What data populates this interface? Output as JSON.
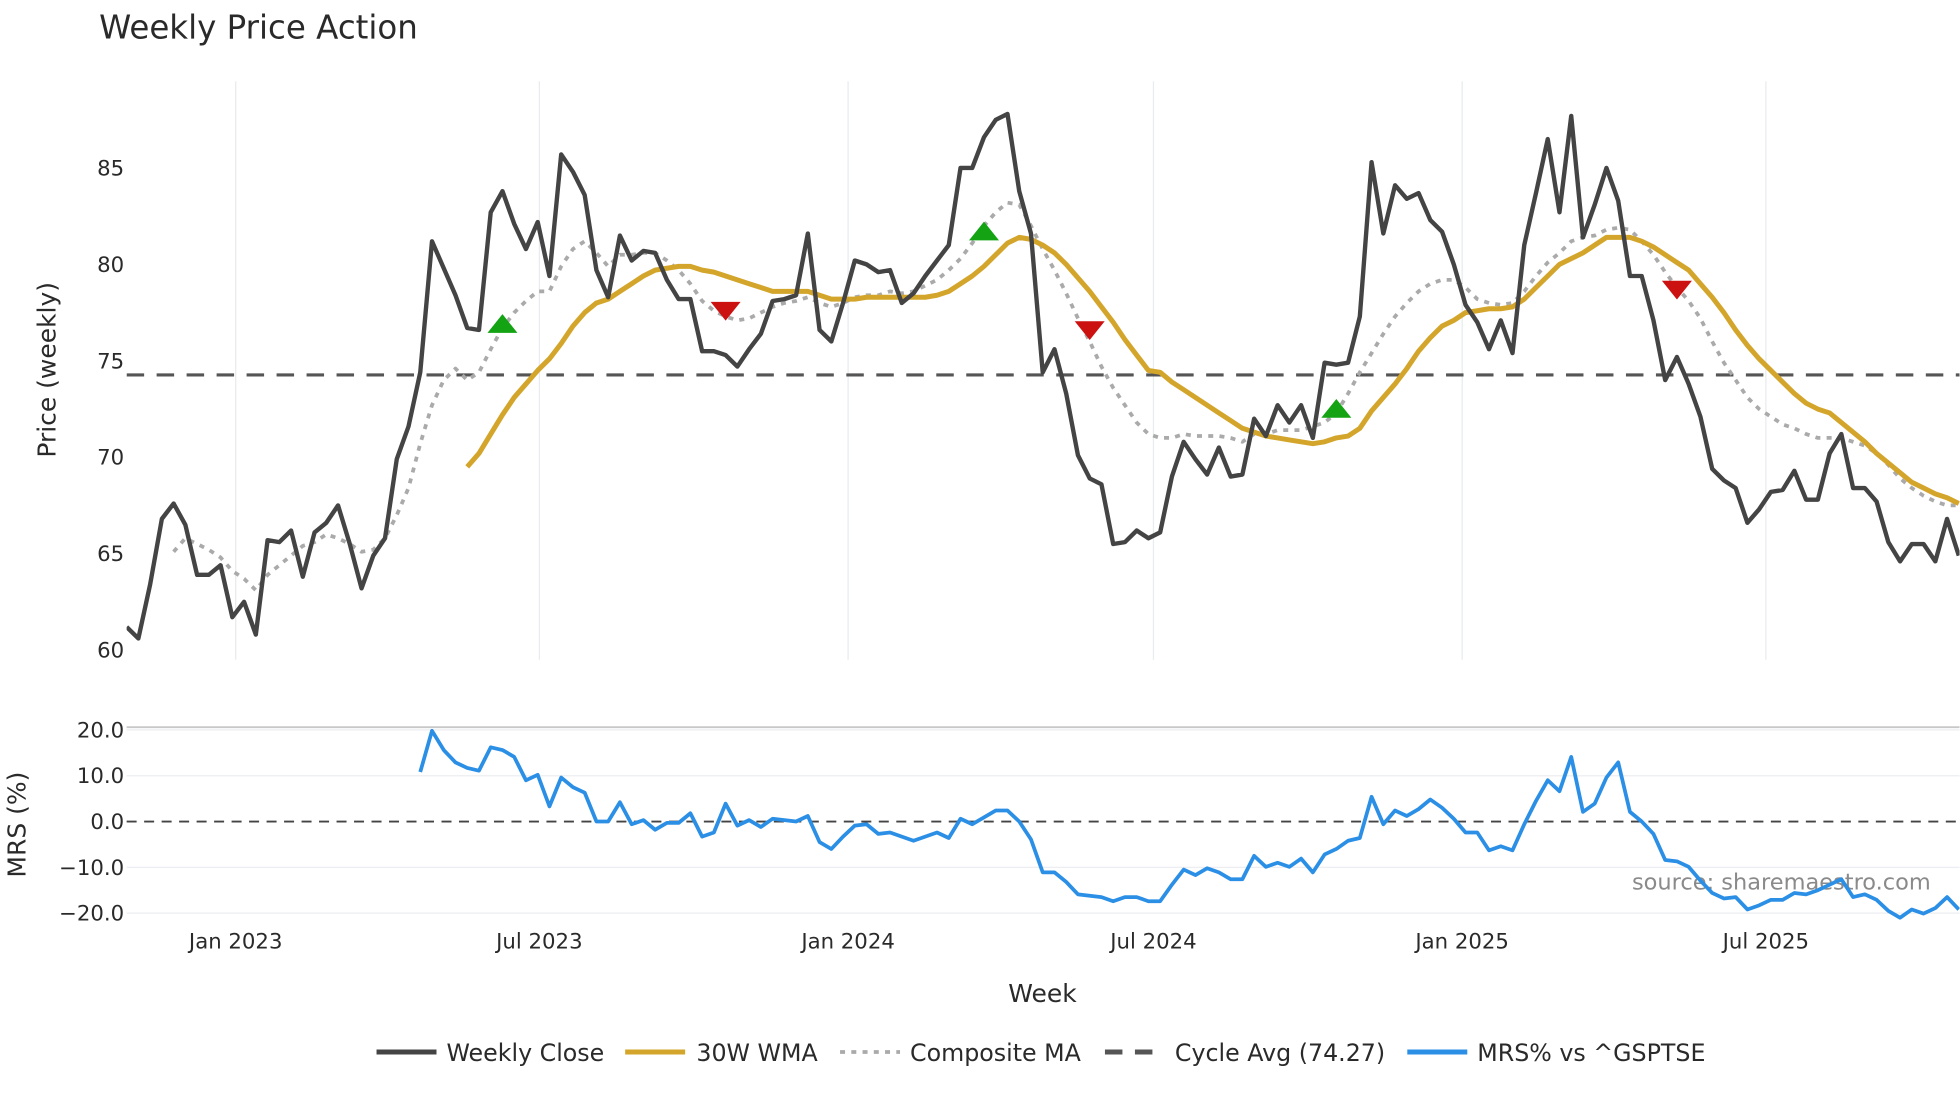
{
  "chart_data": {
    "type": "line",
    "title": "Weekly Price Action",
    "xlabel": "Week",
    "x_start": "2022-10-28",
    "x_step_days": 7,
    "x_ticks": [
      {
        "date": "2023-01-01",
        "label": "Jan 2023"
      },
      {
        "date": "2023-07-01",
        "label": "Jul 2023"
      },
      {
        "date": "2024-01-01",
        "label": "Jan 2024"
      },
      {
        "date": "2024-07-01",
        "label": "Jul 2024"
      },
      {
        "date": "2025-01-01",
        "label": "Jan 2025"
      },
      {
        "date": "2025-07-01",
        "label": "Jul 2025"
      }
    ],
    "price_panel": {
      "ylabel": "Price (weekly)",
      "ylim": [
        59.5,
        89.5
      ],
      "y_ticks": [
        60,
        65,
        70,
        75,
        80,
        85
      ],
      "cycle_avg": 74.27,
      "series": [
        {
          "name": "Weekly Close",
          "color": "#444444",
          "style": "solid",
          "values": [
            61.2,
            60.6,
            63.4,
            66.8,
            67.6,
            66.5,
            63.9,
            63.9,
            64.4,
            61.7,
            62.5,
            60.8,
            65.7,
            65.6,
            66.2,
            63.8,
            66.1,
            66.6,
            67.5,
            65.5,
            63.2,
            64.9,
            65.8,
            69.9,
            71.6,
            74.4,
            81.2,
            79.8,
            78.4,
            76.7,
            76.6,
            82.7,
            83.8,
            82.1,
            80.8,
            82.2,
            79.4,
            85.7,
            84.8,
            83.6,
            79.7,
            78.3,
            81.5,
            80.2,
            80.7,
            80.6,
            79.2,
            78.2,
            78.2,
            75.5,
            75.5,
            75.3,
            74.7,
            75.6,
            76.4,
            78.1,
            78.2,
            78.4,
            81.6,
            76.6,
            76.0,
            78.0,
            80.2,
            80.0,
            79.6,
            79.7,
            78.0,
            78.5,
            79.4,
            80.2,
            81.0,
            85.0,
            85.0,
            86.6,
            87.5,
            87.8,
            83.8,
            81.6,
            74.4,
            75.6,
            73.3,
            70.1,
            68.9,
            68.6,
            65.5,
            65.6,
            66.2,
            65.8,
            66.1,
            69.0,
            70.8,
            69.9,
            69.1,
            70.5,
            69.0,
            69.1,
            72.0,
            71.1,
            72.7,
            71.8,
            72.7,
            71.0,
            74.9,
            74.8,
            74.9,
            77.3,
            85.3,
            81.6,
            84.1,
            83.4,
            83.7,
            82.3,
            81.7,
            80.0,
            77.9,
            77.0,
            75.6,
            77.1,
            75.4,
            81.0,
            83.7,
            86.5,
            82.7,
            87.7,
            81.4,
            83.1,
            85.0,
            83.3,
            79.4,
            79.4,
            77.1,
            74.0,
            75.2,
            73.8,
            72.1,
            69.4,
            68.8,
            68.4,
            66.6,
            67.3,
            68.2,
            68.3,
            69.3,
            67.8,
            67.8,
            70.2,
            71.2,
            68.4,
            68.4,
            67.7,
            65.6,
            64.6,
            65.5,
            65.5,
            64.6,
            66.8,
            64.9
          ]
        },
        {
          "name": "30W WMA",
          "color": "#d4a52b",
          "style": "solid",
          "values": [
            null,
            null,
            null,
            null,
            null,
            null,
            null,
            null,
            null,
            null,
            null,
            null,
            null,
            null,
            null,
            null,
            null,
            null,
            null,
            null,
            null,
            null,
            null,
            null,
            null,
            null,
            null,
            null,
            null,
            69.5,
            70.2,
            71.2,
            72.2,
            73.1,
            73.8,
            74.5,
            75.1,
            75.9,
            76.8,
            77.5,
            78.0,
            78.2,
            78.6,
            79.0,
            79.4,
            79.7,
            79.8,
            79.9,
            79.9,
            79.7,
            79.6,
            79.4,
            79.2,
            79.0,
            78.8,
            78.6,
            78.6,
            78.6,
            78.6,
            78.4,
            78.2,
            78.2,
            78.2,
            78.3,
            78.3,
            78.3,
            78.3,
            78.3,
            78.3,
            78.4,
            78.6,
            79.0,
            79.4,
            79.9,
            80.5,
            81.1,
            81.4,
            81.3,
            81.0,
            80.6,
            80.0,
            79.3,
            78.6,
            77.8,
            77.0,
            76.1,
            75.3,
            74.5,
            74.4,
            73.9,
            73.5,
            73.1,
            72.7,
            72.3,
            71.9,
            71.5,
            71.3,
            71.1,
            71.0,
            70.9,
            70.8,
            70.7,
            70.8,
            71.0,
            71.1,
            71.5,
            72.4,
            73.1,
            73.8,
            74.6,
            75.5,
            76.2,
            76.8,
            77.1,
            77.5,
            77.6,
            77.7,
            77.7,
            77.8,
            78.2,
            78.8,
            79.4,
            80.0,
            80.3,
            80.6,
            81.0,
            81.4,
            81.4,
            81.4,
            81.2,
            80.9,
            80.5,
            80.1,
            79.7,
            79.0,
            78.3,
            77.5,
            76.6,
            75.8,
            75.1,
            74.5,
            73.9,
            73.3,
            72.8,
            72.5,
            72.3,
            71.8,
            71.3,
            70.8,
            70.2,
            69.7,
            69.2,
            68.7,
            68.4,
            68.1,
            67.9,
            67.6
          ]
        },
        {
          "name": "Composite MA",
          "color": "#aaaaaa",
          "style": "dotted",
          "values": [
            null,
            null,
            null,
            null,
            65.1,
            65.8,
            65.5,
            65.2,
            64.8,
            64.1,
            63.7,
            63.1,
            63.9,
            64.4,
            64.9,
            65.4,
            65.6,
            66.0,
            65.8,
            65.5,
            65.1,
            65.2,
            65.8,
            67.0,
            68.4,
            70.7,
            72.7,
            74.0,
            74.6,
            74.0,
            74.4,
            75.6,
            76.7,
            77.5,
            78.1,
            78.6,
            78.6,
            79.9,
            80.8,
            81.2,
            80.6,
            79.9,
            80.5,
            80.5,
            80.6,
            80.6,
            80.2,
            79.7,
            79.0,
            78.1,
            77.6,
            77.3,
            77.1,
            77.2,
            77.5,
            77.8,
            78.0,
            78.1,
            78.3,
            78.0,
            77.8,
            78.0,
            78.3,
            78.4,
            78.4,
            78.6,
            78.5,
            78.6,
            78.9,
            79.2,
            79.7,
            80.3,
            81.1,
            82.0,
            82.7,
            83.2,
            83.1,
            82.0,
            80.8,
            79.7,
            78.5,
            77.2,
            76.0,
            74.7,
            73.6,
            72.7,
            71.8,
            71.2,
            71.0,
            71.0,
            71.2,
            71.1,
            71.1,
            71.1,
            71.0,
            70.8,
            71.2,
            71.2,
            71.4,
            71.4,
            71.4,
            71.6,
            71.8,
            72.3,
            73.3,
            74.4,
            75.4,
            76.4,
            77.3,
            78.0,
            78.6,
            79.0,
            79.2,
            79.2,
            78.8,
            78.2,
            78.0,
            77.9,
            78.0,
            78.6,
            79.4,
            80.1,
            80.6,
            81.2,
            81.4,
            81.5,
            81.8,
            81.9,
            81.8,
            81.2,
            80.5,
            79.6,
            78.8,
            78.1,
            77.2,
            76.0,
            74.9,
            74.0,
            73.1,
            72.5,
            72.1,
            71.7,
            71.5,
            71.2,
            71.0,
            71.0,
            71.0,
            70.8,
            70.6,
            70.2,
            69.6,
            68.9,
            68.4,
            68.0,
            67.7,
            67.5,
            67.5
          ]
        },
        {
          "name": "Cycle Avg (74.27)",
          "color": "#555555",
          "style": "dashed"
        }
      ],
      "signals": [
        {
          "type": "buy",
          "date": "2023-06-09",
          "value": 76.9,
          "color": "#13a313"
        },
        {
          "type": "sell",
          "date": "2023-10-20",
          "value": 77.6,
          "color": "#cc1111"
        },
        {
          "type": "buy",
          "date": "2024-03-22",
          "value": 81.7,
          "color": "#13a313"
        },
        {
          "type": "sell",
          "date": "2024-05-24",
          "value": 76.6,
          "color": "#cc1111"
        },
        {
          "type": "buy",
          "date": "2024-10-18",
          "value": 72.5,
          "color": "#13a313"
        },
        {
          "type": "sell",
          "date": "2025-05-09",
          "value": 78.7,
          "color": "#cc1111"
        }
      ]
    },
    "mrs_panel": {
      "ylabel": "MRS (%)",
      "ylim": [
        -22.5,
        22.5
      ],
      "y_ticks": [
        {
          "value": 20,
          "label": "20.0"
        },
        {
          "value": 10,
          "label": "10.0"
        },
        {
          "value": 0,
          "label": "0.0"
        },
        {
          "value": -10,
          "label": "−10.0"
        },
        {
          "value": -20,
          "label": "−20.0"
        }
      ],
      "series": [
        {
          "name": "MRS% vs ^GSPTSE",
          "color": "#2b8fe6",
          "style": "solid",
          "values": [
            null,
            null,
            null,
            null,
            null,
            null,
            null,
            null,
            null,
            null,
            null,
            null,
            null,
            null,
            null,
            null,
            null,
            null,
            null,
            null,
            null,
            null,
            null,
            null,
            null,
            10.8,
            19.8,
            15.6,
            12.9,
            11.7,
            11.1,
            16.2,
            15.6,
            14.1,
            9.0,
            10.2,
            3.3,
            9.6,
            7.5,
            6.3,
            0.0,
            0.0,
            4.2,
            -0.6,
            0.3,
            -1.8,
            -0.3,
            -0.3,
            1.8,
            -3.3,
            -2.4,
            3.9,
            -0.9,
            0.3,
            -1.2,
            0.6,
            0.3,
            0.0,
            1.2,
            -4.5,
            -6.0,
            -3.3,
            -0.9,
            -0.6,
            -2.7,
            -2.4,
            -3.3,
            -4.2,
            -3.3,
            -2.4,
            -3.6,
            0.6,
            -0.6,
            0.9,
            2.4,
            2.4,
            0.0,
            -3.9,
            -11.1,
            -11.1,
            -13.2,
            -15.9,
            -16.2,
            -16.5,
            -17.4,
            -16.5,
            -16.5,
            -17.4,
            -17.4,
            -13.8,
            -10.5,
            -11.7,
            -10.2,
            -11.1,
            -12.6,
            -12.6,
            -7.5,
            -9.9,
            -9.0,
            -9.9,
            -8.1,
            -11.1,
            -7.2,
            -6.0,
            -4.2,
            -3.6,
            5.4,
            -0.6,
            2.4,
            1.2,
            2.7,
            4.8,
            3.0,
            0.6,
            -2.4,
            -2.4,
            -6.3,
            -5.4,
            -6.3,
            -0.6,
            4.5,
            9.0,
            6.6,
            14.1,
            2.1,
            3.9,
            9.6,
            12.9,
            2.1,
            0.0,
            -2.7,
            -8.4,
            -8.7,
            -9.9,
            -12.9,
            -15.6,
            -16.8,
            -16.5,
            -19.2,
            -18.3,
            -17.1,
            -17.1,
            -15.6,
            -15.9,
            -15.0,
            -13.8,
            -12.6,
            -16.5,
            -15.9,
            -17.1,
            -19.5,
            -21.0,
            -19.2,
            -20.1,
            -18.9,
            -16.5,
            -19.2
          ]
        }
      ]
    },
    "legend": {
      "placement": "bottom",
      "items": [
        "Weekly Close",
        "30W WMA",
        "Composite MA",
        "Cycle Avg (74.27)",
        "MRS% vs ^GSPTSE"
      ]
    },
    "watermark": "source: sharemaestro.com"
  }
}
